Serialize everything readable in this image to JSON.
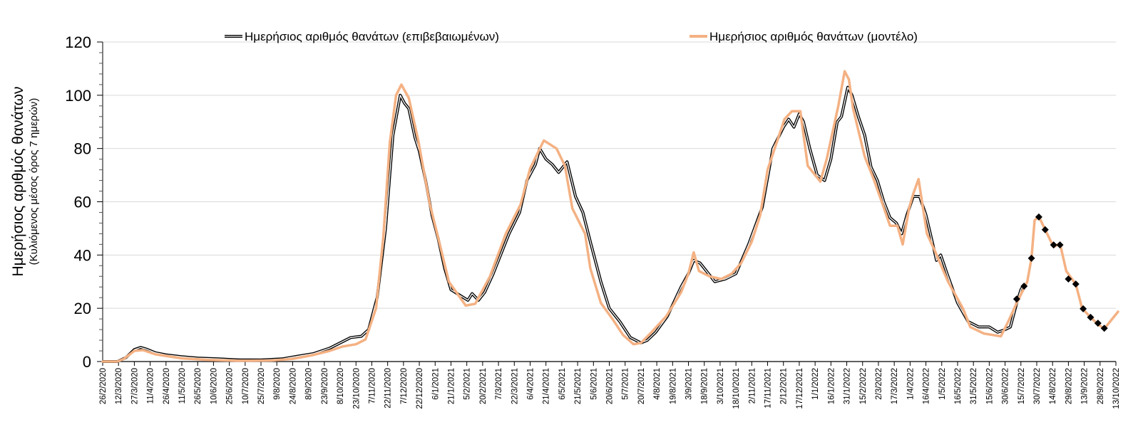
{
  "chart_data": {
    "type": "line",
    "title": "",
    "ylabel": "Ημερήσιος αριθμός θανάτων",
    "ylabel_sub": "(Κυλιόμενος μέσος όρος 7 ημερών)",
    "xlabel": "",
    "ylim": [
      0,
      120
    ],
    "xlim_days": [
      0,
      960
    ],
    "yticks": [
      0,
      20,
      40,
      60,
      80,
      100,
      120
    ],
    "grid": true,
    "legend_position": "top",
    "colors": {
      "confirmed": "#000000",
      "model": "#f4b183",
      "markers": "#000000",
      "grid": "#d9d9d9"
    },
    "xtick_labels": [
      "26/2/2020",
      "12/3/2020",
      "27/3/2020",
      "11/4/2020",
      "26/4/2020",
      "11/5/2020",
      "26/5/2020",
      "10/6/2020",
      "25/6/2020",
      "10/7/2020",
      "25/7/2020",
      "9/8/2020",
      "24/8/2020",
      "8/9/2020",
      "23/9/2020",
      "8/10/2020",
      "23/10/2020",
      "7/11/2020",
      "22/11/2020",
      "7/12/2020",
      "22/12/2020",
      "6/1/2021",
      "21/1/2021",
      "5/2/2021",
      "20/2/2021",
      "7/3/2021",
      "22/3/2021",
      "6/4/2021",
      "21/4/2021",
      "6/5/2021",
      "21/5/2021",
      "5/6/2021",
      "20/6/2021",
      "5/7/2021",
      "20/7/2021",
      "4/8/2021",
      "19/8/2021",
      "3/9/2021",
      "18/9/2021",
      "3/10/2021",
      "18/10/2021",
      "2/11/2021",
      "17/11/2021",
      "2/12/2021",
      "17/12/2021",
      "1/1/2022",
      "16/1/2022",
      "31/1/2022",
      "15/2/2022",
      "2/3/2022",
      "17/3/2022",
      "1/4/2022",
      "16/4/2022",
      "1/5/2022",
      "16/5/2022",
      "31/5/2022",
      "15/6/2022",
      "30/6/2022",
      "15/7/2022",
      "30/7/2022",
      "14/8/2022",
      "29/8/2022",
      "13/9/2022",
      "28/9/2022",
      "13/10/2022"
    ],
    "xtick_step_days": 15,
    "series": [
      {
        "name": "Ημερήσιος αριθμός θανάτων (επιβεβαιωμένων)",
        "style": "double-line",
        "points_day_value": [
          [
            0,
            0
          ],
          [
            14,
            0
          ],
          [
            22,
            1.5
          ],
          [
            30,
            4.5
          ],
          [
            36,
            5.3
          ],
          [
            42,
            4.6
          ],
          [
            50,
            3.3
          ],
          [
            60,
            2.5
          ],
          [
            75,
            1.8
          ],
          [
            90,
            1.3
          ],
          [
            110,
            1
          ],
          [
            130,
            0.6
          ],
          [
            150,
            0.6
          ],
          [
            170,
            1
          ],
          [
            185,
            2
          ],
          [
            200,
            3
          ],
          [
            215,
            5
          ],
          [
            225,
            7
          ],
          [
            235,
            9
          ],
          [
            245,
            9.5
          ],
          [
            252,
            12
          ],
          [
            260,
            24
          ],
          [
            268,
            50
          ],
          [
            275,
            85
          ],
          [
            282,
            100
          ],
          [
            286,
            97
          ],
          [
            290,
            95
          ],
          [
            296,
            84
          ],
          [
            300,
            79
          ],
          [
            306,
            68
          ],
          [
            312,
            55
          ],
          [
            318,
            46
          ],
          [
            324,
            35
          ],
          [
            330,
            27
          ],
          [
            338,
            25
          ],
          [
            346,
            23
          ],
          [
            350,
            25.5
          ],
          [
            356,
            23
          ],
          [
            362,
            26
          ],
          [
            370,
            33
          ],
          [
            385,
            48
          ],
          [
            395,
            56
          ],
          [
            402,
            68
          ],
          [
            410,
            74
          ],
          [
            414,
            80
          ],
          [
            420,
            76
          ],
          [
            426,
            74
          ],
          [
            432,
            71
          ],
          [
            440,
            75
          ],
          [
            448,
            62
          ],
          [
            455,
            56
          ],
          [
            462,
            45
          ],
          [
            472,
            30
          ],
          [
            480,
            20
          ],
          [
            490,
            15
          ],
          [
            500,
            9
          ],
          [
            510,
            7
          ],
          [
            516,
            8
          ],
          [
            524,
            11
          ],
          [
            535,
            17
          ],
          [
            548,
            28
          ],
          [
            555,
            33
          ],
          [
            560,
            38
          ],
          [
            566,
            37
          ],
          [
            572,
            34
          ],
          [
            580,
            30
          ],
          [
            590,
            31
          ],
          [
            600,
            33
          ],
          [
            612,
            44
          ],
          [
            625,
            58
          ],
          [
            635,
            80
          ],
          [
            645,
            88
          ],
          [
            650,
            91
          ],
          [
            655,
            88
          ],
          [
            660,
            93
          ],
          [
            664,
            90
          ],
          [
            670,
            80
          ],
          [
            677,
            70
          ],
          [
            684,
            68
          ],
          [
            690,
            76
          ],
          [
            696,
            90
          ],
          [
            700,
            92
          ],
          [
            706,
            103
          ],
          [
            710,
            100
          ],
          [
            716,
            92
          ],
          [
            722,
            85
          ],
          [
            728,
            73
          ],
          [
            734,
            68
          ],
          [
            740,
            60
          ],
          [
            746,
            54
          ],
          [
            752,
            52
          ],
          [
            757,
            48
          ],
          [
            762,
            55
          ],
          [
            768,
            62
          ],
          [
            774,
            62
          ],
          [
            780,
            55
          ],
          [
            786,
            45
          ],
          [
            790,
            38
          ],
          [
            794,
            40
          ],
          [
            800,
            33
          ],
          [
            810,
            22
          ],
          [
            820,
            15
          ],
          [
            830,
            13
          ],
          [
            840,
            13
          ],
          [
            848,
            11
          ],
          [
            855,
            12
          ],
          [
            860,
            13
          ],
          [
            866,
            22
          ],
          [
            870,
            27
          ],
          [
            873,
            29
          ]
        ]
      },
      {
        "name": "Ημερήσιος αριθμός θανάτων (μοντέλο)",
        "style": "line",
        "points_day_value": [
          [
            0,
            0
          ],
          [
            14,
            0
          ],
          [
            20,
            1
          ],
          [
            30,
            4
          ],
          [
            38,
            4.3
          ],
          [
            50,
            2.7
          ],
          [
            75,
            1.2
          ],
          [
            100,
            0.6
          ],
          [
            130,
            0.3
          ],
          [
            160,
            0.4
          ],
          [
            180,
            1
          ],
          [
            200,
            2.5
          ],
          [
            215,
            4
          ],
          [
            227,
            5.6
          ],
          [
            240,
            6.5
          ],
          [
            249,
            8.3
          ],
          [
            259,
            20
          ],
          [
            266,
            47
          ],
          [
            272,
            82
          ],
          [
            278,
            100
          ],
          [
            283,
            104
          ],
          [
            290,
            99
          ],
          [
            299,
            83
          ],
          [
            310,
            59
          ],
          [
            320,
            43
          ],
          [
            328,
            30
          ],
          [
            344,
            21
          ],
          [
            353,
            21.7
          ],
          [
            367,
            32
          ],
          [
            382,
            48
          ],
          [
            396,
            59
          ],
          [
            405,
            72.5
          ],
          [
            418,
            83
          ],
          [
            430,
            80
          ],
          [
            438,
            73.5
          ],
          [
            445,
            57.5
          ],
          [
            457,
            48
          ],
          [
            462,
            35
          ],
          [
            472,
            22
          ],
          [
            483,
            16
          ],
          [
            493,
            10
          ],
          [
            503,
            6.5
          ],
          [
            510,
            7
          ],
          [
            520,
            11
          ],
          [
            534,
            17
          ],
          [
            548,
            26
          ],
          [
            555,
            33
          ],
          [
            560,
            41
          ],
          [
            565,
            34
          ],
          [
            575,
            32
          ],
          [
            586,
            31
          ],
          [
            596,
            33
          ],
          [
            605,
            37
          ],
          [
            615,
            45
          ],
          [
            623,
            55
          ],
          [
            630,
            72
          ],
          [
            646,
            91
          ],
          [
            653,
            94
          ],
          [
            661,
            94
          ],
          [
            668,
            73.5
          ],
          [
            680,
            67.6
          ],
          [
            686,
            76
          ],
          [
            697,
            96
          ],
          [
            703,
            109
          ],
          [
            707,
            106
          ],
          [
            711,
            95
          ],
          [
            722,
            77
          ],
          [
            730,
            69
          ],
          [
            739,
            59
          ],
          [
            746,
            51
          ],
          [
            753,
            51
          ],
          [
            758,
            44
          ],
          [
            764,
            57.5
          ],
          [
            768,
            63
          ],
          [
            773,
            68.5
          ],
          [
            781,
            48
          ],
          [
            788,
            42
          ],
          [
            801,
            30
          ],
          [
            815,
            20
          ],
          [
            822,
            13
          ],
          [
            835,
            10.5
          ],
          [
            851,
            9.5
          ],
          [
            858,
            15
          ],
          [
            866,
            22
          ],
          [
            876,
            30
          ],
          [
            880,
            38.8
          ],
          [
            883,
            53
          ],
          [
            887,
            54.5
          ],
          [
            893,
            49.5
          ],
          [
            901,
            43
          ],
          [
            907,
            44.4
          ],
          [
            913,
            34
          ],
          [
            922,
            29
          ],
          [
            928,
            20
          ],
          [
            936,
            16.6
          ],
          [
            943,
            14
          ],
          [
            949,
            12.3
          ],
          [
            962,
            18.7
          ]
        ]
      }
    ],
    "markers": {
      "shape": "diamond",
      "points_day_value": [
        [
          866,
          23.5
        ],
        [
          873,
          28.3
        ],
        [
          880,
          38.8
        ],
        [
          887,
          54.3
        ],
        [
          893,
          49.5
        ],
        [
          901,
          43.8
        ],
        [
          907,
          43.8
        ],
        [
          915,
          31
        ],
        [
          922,
          29.1
        ],
        [
          929,
          19.8
        ],
        [
          936,
          16.6
        ],
        [
          943,
          14.4
        ],
        [
          949,
          12.5
        ]
      ]
    }
  }
}
